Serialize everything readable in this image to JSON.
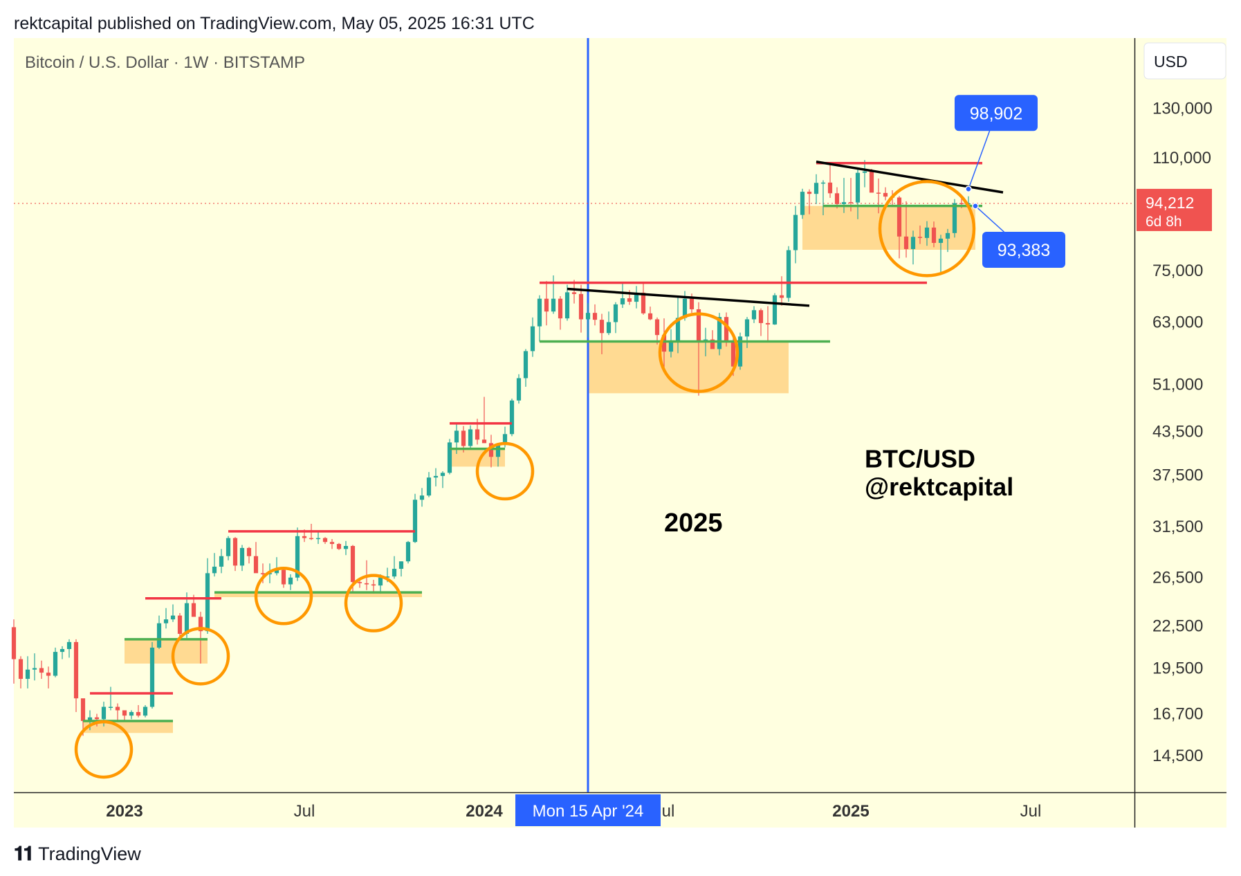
{
  "header": "rektcapital published on TradingView.com, May 05, 2025 16:31 UTC",
  "footer": {
    "brand": "TradingView",
    "logo": "tradingview-logo-icon"
  },
  "colors": {
    "background": "#ffffe0",
    "bull": "#26a69a",
    "bear": "#ef5350",
    "support": "#4caf50",
    "resistance": "#f23645",
    "trendline": "#000000",
    "zone": "#ffd68a",
    "circle": "#ff9800",
    "marker": "#2962ff",
    "price_label": "#f05350"
  },
  "chart_data": {
    "type": "candlestick",
    "title": "Bitcoin / U.S. Dollar · 1W · BITSTAMP",
    "currency": "USD",
    "y_scale": "log",
    "ylim": [
      12800,
      165000
    ],
    "xlim": [
      "2022-09-12",
      "2025-10-20"
    ],
    "y_ticks": [
      "130,000",
      "110,000",
      "75,000",
      "63,000",
      "51,000",
      "43,500",
      "37,500",
      "31,500",
      "26,500",
      "22,500",
      "19,500",
      "16,700",
      "14,500"
    ],
    "x_ticks": [
      {
        "label": "2023",
        "date": "2023-01-02",
        "bold": true
      },
      {
        "label": "Jul",
        "date": "2023-07-03",
        "bold": false
      },
      {
        "label": "2024",
        "date": "2024-01-01",
        "bold": true
      },
      {
        "label": "Jul",
        "date": "2024-07-01",
        "bold": false
      },
      {
        "label": "2025",
        "date": "2025-01-06",
        "bold": true
      },
      {
        "label": "Jul",
        "date": "2025-07-07",
        "bold": false
      }
    ],
    "week_start": "2022-09-12",
    "candles": [
      [
        22400,
        23000,
        18500,
        20100
      ],
      [
        20100,
        20300,
        18200,
        18800
      ],
      [
        18800,
        20300,
        18200,
        19400
      ],
      [
        19400,
        20500,
        18700,
        19500
      ],
      [
        19500,
        20000,
        18800,
        19200
      ],
      [
        19200,
        19600,
        18200,
        19000
      ],
      [
        19000,
        20900,
        18900,
        20600
      ],
      [
        20600,
        21000,
        20100,
        20800
      ],
      [
        20800,
        21500,
        20200,
        21300
      ],
      [
        21300,
        21500,
        16800,
        17600
      ],
      [
        17600,
        17200,
        15500,
        16300
      ],
      [
        16300,
        16900,
        15800,
        16500
      ],
      [
        16500,
        16700,
        16000,
        16400
      ],
      [
        16400,
        17400,
        16000,
        17100
      ],
      [
        17100,
        18300,
        16900,
        17100
      ],
      [
        17100,
        17300,
        16300,
        16900
      ],
      [
        16900,
        16900,
        16300,
        16600
      ],
      [
        16600,
        16900,
        16400,
        16800
      ],
      [
        16800,
        17200,
        16500,
        16600
      ],
      [
        16600,
        17200,
        16500,
        17100
      ],
      [
        17100,
        21300,
        17000,
        20900
      ],
      [
        20900,
        23300,
        20800,
        22700
      ],
      [
        22700,
        23900,
        22300,
        23000
      ],
      [
        23000,
        24200,
        22800,
        23300
      ],
      [
        23300,
        23500,
        21700,
        21900
      ],
      [
        21900,
        25200,
        21600,
        24300
      ],
      [
        24300,
        25000,
        23300,
        23200
      ],
      [
        23200,
        23600,
        19800,
        22100
      ],
      [
        22100,
        28300,
        21900,
        26900
      ],
      [
        26900,
        28800,
        26600,
        27500
      ],
      [
        27500,
        29200,
        26900,
        28500
      ],
      [
        28500,
        30500,
        28100,
        30300
      ],
      [
        30300,
        30400,
        27100,
        27600
      ],
      [
        27600,
        29600,
        27100,
        29300
      ],
      [
        29300,
        29400,
        27800,
        28500
      ],
      [
        28500,
        29900,
        27000,
        26900
      ],
      [
        26900,
        27800,
        26000,
        26800
      ],
      [
        26800,
        27800,
        26000,
        26900
      ],
      [
        26900,
        28400,
        26700,
        27200
      ],
      [
        27200,
        27400,
        25600,
        25900
      ],
      [
        25900,
        26800,
        25400,
        26500
      ],
      [
        26500,
        31400,
        26200,
        30500
      ],
      [
        30500,
        31200,
        29900,
        30300
      ],
      [
        30300,
        31800,
        30100,
        30200
      ],
      [
        30200,
        31000,
        29700,
        30300
      ],
      [
        30300,
        30400,
        29700,
        29900
      ],
      [
        29900,
        30200,
        29200,
        29700
      ],
      [
        29700,
        29800,
        29100,
        29200
      ],
      [
        29200,
        30000,
        28600,
        29500
      ],
      [
        29500,
        29600,
        25300,
        26100
      ],
      [
        26100,
        26500,
        25600,
        26000
      ],
      [
        26000,
        28100,
        25400,
        25900
      ],
      [
        25900,
        26300,
        25100,
        25800
      ],
      [
        25800,
        26800,
        25100,
        26500
      ],
      [
        26500,
        27400,
        26100,
        26600
      ],
      [
        26600,
        28500,
        26400,
        27300
      ],
      [
        27300,
        28000,
        26600,
        28000
      ],
      [
        28000,
        30000,
        27800,
        29900
      ],
      [
        29900,
        35200,
        29800,
        34500
      ],
      [
        34500,
        35900,
        33700,
        35000
      ],
      [
        35000,
        37900,
        34800,
        37200
      ],
      [
        37200,
        38400,
        36100,
        37400
      ],
      [
        37400,
        38000,
        35900,
        37800
      ],
      [
        37800,
        42400,
        37600,
        41900
      ],
      [
        41900,
        44700,
        40300,
        43600
      ],
      [
        43600,
        44300,
        40500,
        41400
      ],
      [
        41400,
        44400,
        40900,
        43800
      ],
      [
        43800,
        45400,
        41600,
        42300
      ],
      [
        42300,
        48900,
        41800,
        41800
      ],
      [
        41800,
        43000,
        38500,
        39900
      ],
      [
        39900,
        41800,
        38600,
        41600
      ],
      [
        41600,
        44200,
        41200,
        43100
      ],
      [
        43100,
        48600,
        42800,
        48300
      ],
      [
        48300,
        52800,
        47800,
        52100
      ],
      [
        52100,
        57500,
        50600,
        57100
      ],
      [
        57100,
        64000,
        56000,
        62100
      ],
      [
        62100,
        69000,
        59000,
        68200
      ],
      [
        68200,
        72400,
        62300,
        65300
      ],
      [
        65300,
        73800,
        64800,
        68200
      ],
      [
        68200,
        68800,
        61400,
        63800
      ],
      [
        63800,
        71500,
        63300,
        69700
      ],
      [
        69700,
        72700,
        67100,
        69300
      ],
      [
        69300,
        71500,
        60800,
        63600
      ],
      [
        63600,
        67200,
        59800,
        65000
      ],
      [
        65000,
        66900,
        62300,
        63500
      ],
      [
        63500,
        64800,
        56500,
        60700
      ],
      [
        60700,
        65300,
        60300,
        63000
      ],
      [
        63000,
        67400,
        60700,
        66900
      ],
      [
        66900,
        71900,
        66100,
        68300
      ],
      [
        68300,
        70200,
        66800,
        67500
      ],
      [
        67500,
        71200,
        66000,
        69600
      ],
      [
        69600,
        71900,
        64600,
        64900
      ],
      [
        64900,
        66400,
        63400,
        63600
      ],
      [
        63600,
        64000,
        58400,
        60300
      ],
      [
        60300,
        63800,
        53500,
        57000
      ],
      [
        57000,
        61500,
        55900,
        59200
      ],
      [
        59200,
        68500,
        56700,
        63900
      ],
      [
        63900,
        70000,
        63300,
        68200
      ],
      [
        68200,
        69400,
        65000,
        65800
      ],
      [
        65800,
        67400,
        49100,
        58800
      ],
      [
        58800,
        61800,
        56100,
        59400
      ],
      [
        59400,
        61300,
        57600,
        57500
      ],
      [
        57500,
        65000,
        56300,
        64100
      ],
      [
        64100,
        65100,
        58000,
        58900
      ],
      [
        58900,
        59700,
        52500,
        54200
      ],
      [
        54200,
        60800,
        53600,
        60000
      ],
      [
        60000,
        64100,
        57700,
        63600
      ],
      [
        63600,
        66500,
        62800,
        65600
      ],
      [
        65600,
        66000,
        60100,
        62800
      ],
      [
        62800,
        66500,
        58900,
        62500
      ],
      [
        62500,
        69500,
        62400,
        69000
      ],
      [
        69000,
        73600,
        66600,
        68400
      ],
      [
        68400,
        81500,
        67500,
        80400
      ],
      [
        80400,
        93400,
        76900,
        90600
      ],
      [
        90600,
        99000,
        89400,
        98000
      ],
      [
        98000,
        98800,
        90800,
        97300
      ],
      [
        97300,
        104000,
        94000,
        101000
      ],
      [
        101000,
        101900,
        90500,
        101100
      ],
      [
        101100,
        108300,
        96000,
        97500
      ],
      [
        97500,
        99500,
        92600,
        94000
      ],
      [
        94000,
        102700,
        91200,
        94600
      ],
      [
        94600,
        102700,
        91700,
        94500
      ],
      [
        94500,
        106000,
        89300,
        104500
      ],
      [
        104500,
        109100,
        99500,
        105000
      ],
      [
        105000,
        105900,
        97800,
        97700
      ],
      [
        97700,
        102500,
        91100,
        97600
      ],
      [
        97600,
        99500,
        95200,
        96400
      ],
      [
        96400,
        98500,
        93400,
        96100
      ],
      [
        96100,
        96600,
        78200,
        84200
      ],
      [
        84200,
        94900,
        78400,
        80700
      ],
      [
        80700,
        85900,
        76600,
        84100
      ],
      [
        84100,
        87400,
        82100,
        83800
      ],
      [
        83800,
        88700,
        81600,
        86800
      ],
      [
        86800,
        88600,
        81200,
        82400
      ],
      [
        82400,
        84700,
        74500,
        83600
      ],
      [
        83600,
        86400,
        79900,
        85200
      ],
      [
        85200,
        95600,
        83900,
        94300
      ],
      [
        94300,
        95700,
        92700,
        94200
      ],
      [
        94200,
        96500,
        93000,
        94212
      ]
    ],
    "resistance_lines": [
      {
        "from": "2022-11-28",
        "to": "2023-02-20",
        "price": 17900
      },
      {
        "from": "2023-01-23",
        "to": "2023-04-10",
        "price": 24700
      },
      {
        "from": "2023-04-17",
        "to": "2023-10-23",
        "price": 31000
      },
      {
        "from": "2023-11-27",
        "to": "2024-01-29",
        "price": 44700
      },
      {
        "from": "2024-02-26",
        "to": "2025-03-24",
        "price": 72000
      },
      {
        "from": "2024-12-02",
        "to": "2025-05-19",
        "price": 108000
      }
    ],
    "support_lines": [
      {
        "from": "2022-11-21",
        "to": "2023-02-20",
        "price": 16300
      },
      {
        "from": "2023-01-02",
        "to": "2023-03-27",
        "price": 21500
      },
      {
        "from": "2023-04-03",
        "to": "2023-10-30",
        "price": 25200
      },
      {
        "from": "2023-11-27",
        "to": "2024-01-22",
        "price": 41000
      },
      {
        "from": "2024-02-26",
        "to": "2024-12-16",
        "price": 59000
      },
      {
        "from": "2024-12-09",
        "to": "2025-05-19",
        "price": 93400
      }
    ],
    "zones": [
      {
        "from": "2022-11-21",
        "to": "2023-02-20",
        "low": 15650,
        "high": 16300
      },
      {
        "from": "2023-01-02",
        "to": "2023-03-27",
        "low": 19800,
        "high": 21500
      },
      {
        "from": "2023-04-03",
        "to": "2023-10-30",
        "low": 24800,
        "high": 25200
      },
      {
        "from": "2023-11-27",
        "to": "2024-01-22",
        "low": 38600,
        "high": 41000
      },
      {
        "from": "2024-04-15",
        "to": "2024-11-04",
        "low": 49500,
        "high": 59000
      },
      {
        "from": "2024-11-18",
        "to": "2025-05-12",
        "low": 80500,
        "high": 93400
      }
    ],
    "circles": [
      {
        "date": "2022-12-12",
        "price": 14800,
        "r": 40
      },
      {
        "date": "2023-03-20",
        "price": 20300,
        "r": 40
      },
      {
        "date": "2023-06-12",
        "price": 24900,
        "r": 40
      },
      {
        "date": "2023-09-11",
        "price": 24300,
        "r": 40
      },
      {
        "date": "2024-01-22",
        "price": 38000,
        "r": 40
      },
      {
        "date": "2024-08-05",
        "price": 56800,
        "r": 56
      },
      {
        "date": "2025-03-24",
        "price": 86500,
        "r": 68
      }
    ],
    "trendlines": [
      {
        "from": "2024-03-25",
        "from_price": 70500,
        "to": "2024-11-25",
        "to_price": 66600
      },
      {
        "from": "2024-12-02",
        "from_price": 108500,
        "to": "2025-06-09",
        "to_price": 97800
      }
    ],
    "vertical_marker": {
      "date": "2024-04-15",
      "label": "Mon 15 Apr '24"
    },
    "annotations": [
      {
        "text": "2025",
        "date": "2024-07-01",
        "price": 31000,
        "size": 38
      },
      {
        "text": "BTC/USD",
        "date": "2025-01-20",
        "price": 38500,
        "size": 36
      },
      {
        "text": "@rektcapital",
        "date": "2025-01-20",
        "price": 35000,
        "size": 36
      }
    ],
    "callouts": [
      {
        "text": "98,902",
        "date": "2025-05-05",
        "price": 98902,
        "label_date": "2025-06-02",
        "label_price": 128000
      },
      {
        "text": "93,383",
        "date": "2025-05-12",
        "price": 93383,
        "label_date": "2025-06-30",
        "label_price": 80500
      }
    ],
    "last_price": {
      "value": "94,212",
      "sub": "6d 8h",
      "price": 94212
    }
  }
}
